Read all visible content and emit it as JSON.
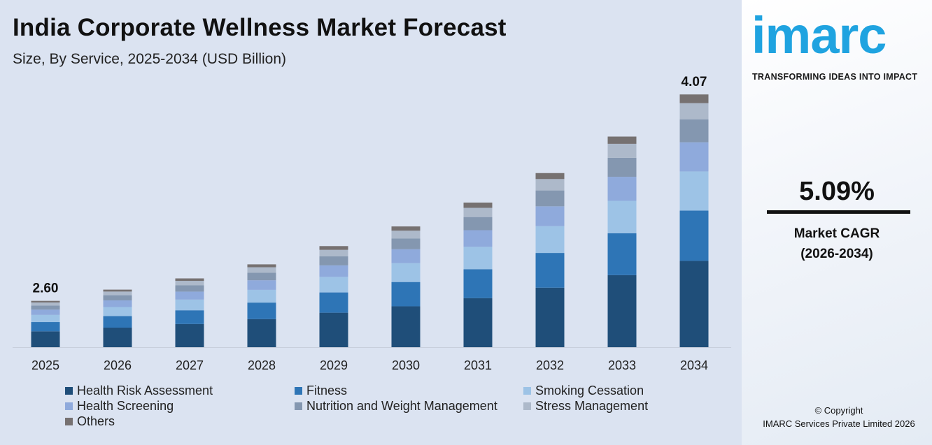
{
  "chart_data": {
    "type": "bar",
    "stacked": true,
    "title": "India Corporate Wellness Market Forecast",
    "subtitle": "Size, By Service, 2025-2034 (USD Billion)",
    "categories": [
      "2025",
      "2026",
      "2027",
      "2028",
      "2029",
      "2030",
      "2031",
      "2032",
      "2033",
      "2034"
    ],
    "series": [
      {
        "name": "Health Risk Assessment",
        "color": "#1f4e79",
        "values": [
          0.89,
          0.91,
          0.93,
          0.97,
          1.02,
          1.06,
          1.12,
          1.2,
          1.29,
          1.39
        ]
      },
      {
        "name": "Fitness",
        "color": "#2e75b6",
        "values": [
          0.52,
          0.54,
          0.55,
          0.57,
          0.6,
          0.63,
          0.66,
          0.7,
          0.75,
          0.81
        ]
      },
      {
        "name": "Smoking Cessation",
        "color": "#9dc3e6",
        "values": [
          0.4,
          0.42,
          0.43,
          0.44,
          0.46,
          0.49,
          0.51,
          0.54,
          0.58,
          0.63
        ]
      },
      {
        "name": "Health Screening",
        "color": "#8faadc",
        "values": [
          0.3,
          0.31,
          0.32,
          0.33,
          0.34,
          0.36,
          0.38,
          0.4,
          0.43,
          0.47
        ]
      },
      {
        "name": "Nutrition and Weight Management",
        "color": "#8497b0",
        "values": [
          0.23,
          0.24,
          0.25,
          0.26,
          0.27,
          0.28,
          0.3,
          0.32,
          0.34,
          0.37
        ]
      },
      {
        "name": "Stress Management",
        "color": "#adb9ca",
        "values": [
          0.17,
          0.17,
          0.18,
          0.19,
          0.19,
          0.2,
          0.21,
          0.23,
          0.25,
          0.26
        ]
      },
      {
        "name": "Others",
        "color": "#767171",
        "values": [
          0.09,
          0.09,
          0.1,
          0.1,
          0.11,
          0.11,
          0.12,
          0.12,
          0.13,
          0.14
        ]
      }
    ],
    "data_labels": {
      "2025": "2.60",
      "2034": "4.07"
    },
    "grid": false,
    "legend": "bottom"
  },
  "brand": {
    "logo": "imarc",
    "tagline": "TRANSFORMING IDEAS INTO IMPACT"
  },
  "cagr": {
    "value": "5.09%",
    "label": "Market CAGR",
    "period": "(2026-2034)"
  },
  "copyright": {
    "line1": "© Copyright",
    "line2": "IMARC Services Private Limited 2026"
  }
}
